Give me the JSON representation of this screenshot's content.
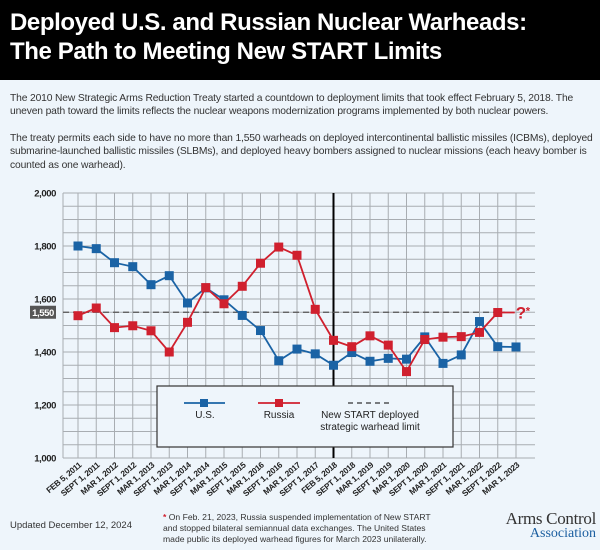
{
  "header": {
    "title_line1": "Deployed U.S. and Russian Nuclear Warheads:",
    "title_line2": "The Path to Meeting New START Limits"
  },
  "intro": {
    "para1": "The 2010 New Strategic Arms Reduction Treaty started a countdown to deployment limits that took effect February 5, 2018. The uneven path toward the limits reflects the nuclear weapons modernization programs implemented by both nuclear powers.",
    "para2": "The treaty permits each side to have no more than 1,550 warheads on deployed intercontinental ballistic missiles (ICBMs), deployed submarine-launched ballistic missiles (SLBMs), and deployed heavy bombers assigned to nuclear missions (each heavy bomber is counted as one warhead)."
  },
  "chart_data": {
    "type": "line",
    "title": "Deployed U.S. and Russian Nuclear Warheads: The Path to Meeting New START Limits",
    "xlabel": "",
    "ylabel": "",
    "ylim": [
      1000,
      2000
    ],
    "yticks": [
      "1,000",
      "1,200",
      "1,400",
      "1,600",
      "1,800",
      "2,000"
    ],
    "ytick_values": [
      1000,
      1200,
      1400,
      1600,
      1800,
      2000
    ],
    "grid": true,
    "categories": [
      "FEB 5, 2011",
      "SEPT 1, 2011",
      "MAR 1, 2012",
      "SEPT 1, 2012",
      "MAR 1, 2013",
      "SEPT 1, 2013",
      "MAR 1, 2014",
      "SEPT 1, 2014",
      "MAR 1, 2015",
      "SEPT 1, 2015",
      "MAR 1, 2016",
      "SEPT 1, 2016",
      "MAR 1, 2017",
      "SEPT 1, 2017",
      "FEB 5, 2018",
      "SEPT 1, 2018",
      "MAR 1, 2019",
      "SEPT 1, 2019",
      "MAR 1, 2020",
      "SEPT 1, 2020",
      "MAR 1, 2021",
      "SEPT 1, 2021",
      "MAR 1, 2022",
      "SEPT 1, 2022",
      "MAR 1, 2023"
    ],
    "series": [
      {
        "name": "U.S.",
        "color": "#1a63a5",
        "values": [
          1800,
          1790,
          1737,
          1722,
          1654,
          1688,
          1585,
          1642,
          1597,
          1538,
          1481,
          1367,
          1411,
          1393,
          1350,
          1398,
          1365,
          1376,
          1373,
          1457,
          1357,
          1389,
          1515,
          1420,
          1419
        ]
      },
      {
        "name": "Russia",
        "color": "#d0202e",
        "values": [
          1537,
          1566,
          1492,
          1499,
          1480,
          1400,
          1512,
          1643,
          1582,
          1648,
          1735,
          1796,
          1765,
          1561,
          1444,
          1420,
          1461,
          1426,
          1326,
          1447,
          1456,
          1458,
          1474,
          1549,
          null
        ]
      }
    ],
    "limit": {
      "value": 1550,
      "label": "1,550",
      "legend": "New START deployed strategic warhead limit"
    },
    "limit_date_index": 14,
    "unknown_marker": "?*",
    "legend_placement": "bottom-center"
  },
  "legend": {
    "us": "U.S.",
    "russia": "Russia",
    "limit_line1": "New START deployed",
    "limit_line2": "strategic warhead limit"
  },
  "footer": {
    "updated": "Updated December 12, 2024",
    "footnote_star": "*",
    "footnote": "On Feb. 21, 2023, Russia suspended implementation of New START and stopped bilateral semiannual data exchanges. The United States made public its deployed warhead figures for March 2023 unilaterally.",
    "logo_line1": "Arms Control",
    "logo_line2": "Association"
  },
  "colors": {
    "us": "#1a63a5",
    "russia": "#d0202e",
    "grid": "#a8adb2",
    "background": "#eef5fb"
  }
}
